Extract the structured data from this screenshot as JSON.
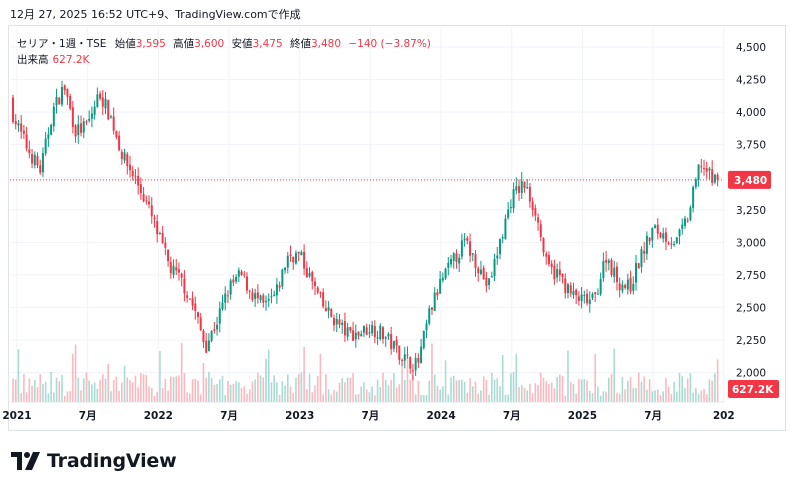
{
  "header": {
    "caption": "12月 27, 2025 16:52 UTC+9、TradingView.comで作成"
  },
  "legend": {
    "symbol": "セリア・1週・TSE",
    "open_label": "始値",
    "open": "3,595",
    "high_label": "高値",
    "high": "3,600",
    "low_label": "安値",
    "low": "3,475",
    "close_label": "終値",
    "close": "3,480",
    "change": "−140 (−3.87%)",
    "volume_label": "出来高",
    "volume": "627.2K"
  },
  "price_axis": {
    "ticks": [
      "4,500",
      "4,250",
      "4,000",
      "3,750",
      "3,500",
      "3,250",
      "3,000",
      "2,750",
      "2,500",
      "2,250",
      "2,000"
    ],
    "last_price": "3,480",
    "last_volume": "627.2K"
  },
  "time_axis": {
    "ticks": [
      "2021",
      "7月",
      "2022",
      "7月",
      "2023",
      "7月",
      "2024",
      "7月",
      "2025",
      "7月",
      "202"
    ]
  },
  "brand": {
    "name": "TradingView"
  },
  "colors": {
    "up": "#089981",
    "down": "#f23645",
    "grid": "#f0f3fa",
    "text": "#131722"
  },
  "chart_data": {
    "type": "candlestick",
    "interval": "1 week",
    "y_range": [
      1950,
      4600
    ],
    "x_range": [
      "2021-01",
      "2025-12"
    ],
    "anchors": [
      {
        "date": "2020-12",
        "price": 4150
      },
      {
        "date": "2021-01",
        "price": 3900
      },
      {
        "date": "2021-02",
        "price": 3700
      },
      {
        "date": "2021-03",
        "price": 3550
      },
      {
        "date": "2021-04",
        "price": 4000
      },
      {
        "date": "2021-05",
        "price": 4200
      },
      {
        "date": "2021-06",
        "price": 3850
      },
      {
        "date": "2021-07",
        "price": 3900
      },
      {
        "date": "2021-08",
        "price": 4150
      },
      {
        "date": "2021-09",
        "price": 3950
      },
      {
        "date": "2021-10",
        "price": 3650
      },
      {
        "date": "2021-11",
        "price": 3500
      },
      {
        "date": "2021-12",
        "price": 3300
      },
      {
        "date": "2022-01",
        "price": 3050
      },
      {
        "date": "2022-02",
        "price": 2800
      },
      {
        "date": "2022-03",
        "price": 2700
      },
      {
        "date": "2022-04",
        "price": 2500
      },
      {
        "date": "2022-05",
        "price": 2200
      },
      {
        "date": "2022-06",
        "price": 2400
      },
      {
        "date": "2022-07",
        "price": 2650
      },
      {
        "date": "2022-08",
        "price": 2750
      },
      {
        "date": "2022-09",
        "price": 2600
      },
      {
        "date": "2022-10",
        "price": 2500
      },
      {
        "date": "2022-11",
        "price": 2600
      },
      {
        "date": "2022-12",
        "price": 2900
      },
      {
        "date": "2023-01",
        "price": 2900
      },
      {
        "date": "2023-02",
        "price": 2700
      },
      {
        "date": "2023-03",
        "price": 2500
      },
      {
        "date": "2023-04",
        "price": 2400
      },
      {
        "date": "2023-05",
        "price": 2300
      },
      {
        "date": "2023-06",
        "price": 2300
      },
      {
        "date": "2023-07",
        "price": 2350
      },
      {
        "date": "2023-08",
        "price": 2300
      },
      {
        "date": "2023-09",
        "price": 2200
      },
      {
        "date": "2023-10",
        "price": 2100
      },
      {
        "date": "2023-11",
        "price": 2050
      },
      {
        "date": "2023-12",
        "price": 2450
      },
      {
        "date": "2024-01",
        "price": 2700
      },
      {
        "date": "2024-02",
        "price": 2850
      },
      {
        "date": "2024-03",
        "price": 3000
      },
      {
        "date": "2024-04",
        "price": 2850
      },
      {
        "date": "2024-05",
        "price": 2650
      },
      {
        "date": "2024-06",
        "price": 3000
      },
      {
        "date": "2024-07",
        "price": 3350
      },
      {
        "date": "2024-08",
        "price": 3450
      },
      {
        "date": "2024-09",
        "price": 3250
      },
      {
        "date": "2024-10",
        "price": 2800
      },
      {
        "date": "2024-11",
        "price": 2750
      },
      {
        "date": "2024-12",
        "price": 2600
      },
      {
        "date": "2025-01",
        "price": 2550
      },
      {
        "date": "2025-02",
        "price": 2550
      },
      {
        "date": "2025-03",
        "price": 2900
      },
      {
        "date": "2025-04",
        "price": 2700
      },
      {
        "date": "2025-05",
        "price": 2650
      },
      {
        "date": "2025-06",
        "price": 2900
      },
      {
        "date": "2025-07",
        "price": 3100
      },
      {
        "date": "2025-08",
        "price": 3050
      },
      {
        "date": "2025-09",
        "price": 3000
      },
      {
        "date": "2025-10",
        "price": 3200
      },
      {
        "date": "2025-11",
        "price": 3620
      },
      {
        "date": "2025-12",
        "price": 3480
      }
    ]
  }
}
